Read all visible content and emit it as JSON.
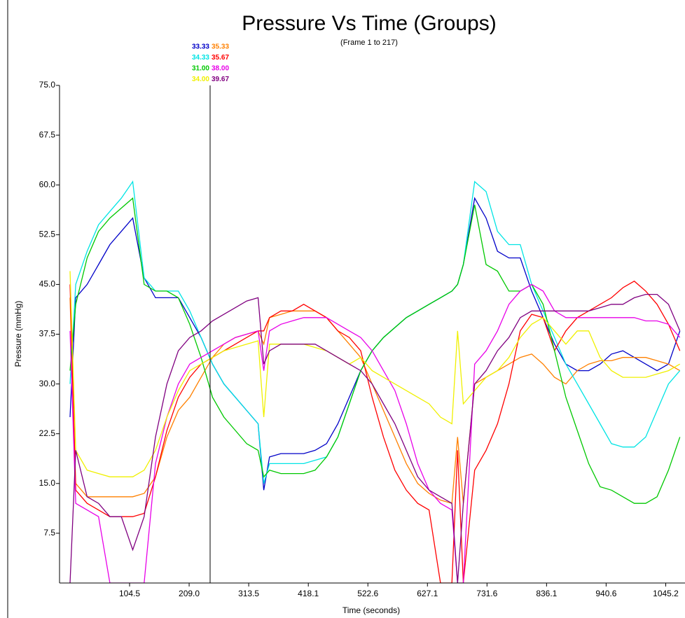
{
  "chart_data": {
    "type": "line",
    "title": "Pressure Vs Time (Groups)",
    "subtitle": "(Frame 1 to 217)",
    "x_label": "Time (seconds)",
    "y_label": "Pressure (mmHg)",
    "xlim": [
      -18.4,
      1079
    ],
    "ylim": [
      0,
      75
    ],
    "xticks": [
      104.5,
      {
        "value": 209,
        "label": "209.0"
      },
      313.5,
      418.1,
      522.6,
      627.1,
      731.6,
      836.1,
      940.6,
      1045.2
    ],
    "yticks": [
      {
        "value": 7.5,
        "label": "7.5"
      },
      {
        "value": 15,
        "label": "15.0"
      },
      {
        "value": 22.5,
        "label": "22.5"
      },
      {
        "value": 30,
        "label": "30.0"
      },
      {
        "value": 37.5,
        "label": "37.5"
      },
      {
        "value": 45,
        "label": "45.0"
      },
      {
        "value": 52.5,
        "label": "52.5"
      },
      {
        "value": 60,
        "label": "60.0"
      },
      {
        "value": 67.5,
        "label": "67.5"
      },
      {
        "value": 75,
        "label": "75.0"
      }
    ],
    "cursor_x": 245.8,
    "x": [
      0,
      10,
      30,
      50,
      70,
      90,
      110,
      130,
      150,
      170,
      190,
      210,
      230,
      250,
      270,
      290,
      310,
      330,
      340,
      350,
      370,
      390,
      410,
      430,
      450,
      470,
      490,
      510,
      530,
      550,
      570,
      590,
      610,
      630,
      650,
      670,
      680,
      690,
      710,
      730,
      750,
      770,
      790,
      810,
      830,
      850,
      870,
      890,
      910,
      930,
      950,
      970,
      990,
      1010,
      1030,
      1050,
      1070
    ],
    "series": [
      {
        "color": "#0000c8",
        "cursor_label": "33.33",
        "values": [
          25,
          43,
          45,
          48,
          51,
          53,
          55,
          46,
          43,
          43,
          43,
          40,
          37,
          33,
          30,
          28,
          26,
          24,
          14,
          19,
          19.5,
          19.5,
          19.5,
          20,
          21,
          24,
          28,
          32,
          35,
          37,
          38.5,
          40,
          41,
          42,
          43,
          44,
          45,
          48,
          58,
          55,
          50,
          49,
          49,
          44,
          40,
          36,
          33,
          32,
          32,
          33,
          34.5,
          35,
          34,
          33,
          32,
          33,
          38
        ]
      },
      {
        "color": "#ff8000",
        "cursor_label": "35.33",
        "values": [
          43,
          15,
          13,
          13,
          13,
          13,
          13,
          13.5,
          16,
          22,
          26,
          28,
          31,
          34,
          36,
          37,
          37.5,
          38,
          36,
          40,
          40.5,
          41,
          41,
          41,
          40,
          38,
          36,
          34,
          30,
          26,
          22,
          18,
          15,
          13.5,
          12.5,
          12,
          22,
          12,
          30,
          31,
          32,
          33,
          34,
          34.5,
          33,
          31,
          30,
          32,
          33,
          33.5,
          33.5,
          34,
          34,
          34,
          33.5,
          33,
          32
        ]
      },
      {
        "color": "#00e4e4",
        "cursor_label": "34.33",
        "values": [
          30,
          45,
          50,
          54,
          56,
          58,
          60.5,
          46,
          44,
          44,
          44,
          41,
          37,
          33,
          30,
          28,
          26,
          24,
          15,
          18,
          18,
          18,
          18,
          18.5,
          19,
          22,
          27,
          32,
          35,
          37,
          38.5,
          40,
          41,
          42,
          43,
          44,
          45,
          48,
          60.5,
          59,
          53,
          51,
          51,
          45,
          41,
          37,
          33,
          30,
          27,
          24,
          21,
          20.5,
          20.5,
          22,
          26,
          30,
          32
        ]
      },
      {
        "color": "#ff0000",
        "cursor_label": "35.67",
        "values": [
          45,
          14,
          12,
          11,
          10,
          10,
          10,
          10.5,
          16,
          23,
          28,
          31,
          33,
          34,
          35,
          36,
          37,
          38,
          38,
          40,
          41,
          41,
          42,
          41,
          40,
          38,
          37,
          35,
          28,
          22,
          17,
          14,
          12,
          11,
          0,
          0,
          20,
          0,
          17,
          20,
          24,
          30,
          38,
          40.5,
          40,
          35,
          38,
          40,
          41,
          42,
          43,
          44.5,
          45.5,
          44,
          42,
          39,
          35
        ]
      },
      {
        "color": "#00c800",
        "cursor_label": "31.00",
        "values": [
          32,
          42,
          49,
          53,
          55,
          56.5,
          58,
          45,
          44,
          44,
          43,
          39,
          34,
          28,
          25,
          23,
          21,
          20,
          16,
          17,
          16.5,
          16.5,
          16.5,
          17,
          19,
          22,
          27,
          32,
          35,
          37,
          38.5,
          40,
          41,
          42,
          43,
          44,
          45,
          48,
          57,
          48,
          47,
          44,
          44,
          45,
          42,
          35,
          28,
          23,
          18,
          14.5,
          14,
          13,
          12,
          12,
          13,
          17,
          22
        ]
      },
      {
        "color": "#e800e8",
        "cursor_label": "38.00",
        "values": [
          38,
          12,
          11,
          10,
          0,
          0,
          0,
          0,
          18,
          25,
          30,
          33,
          34,
          35,
          36,
          37,
          37.5,
          38,
          32,
          38,
          39,
          39.5,
          40,
          40,
          40,
          39,
          38,
          37,
          35,
          32,
          29,
          24,
          18,
          14,
          12,
          11,
          0,
          0,
          33,
          35,
          38,
          42,
          44,
          45,
          44,
          41,
          40,
          40,
          40,
          40,
          40,
          40,
          40,
          39.5,
          39.5,
          39,
          37
        ]
      },
      {
        "color": "#f0f000",
        "cursor_label": "34.00",
        "values": [
          47,
          20,
          17,
          16.5,
          16,
          16,
          16,
          17,
          20,
          25,
          29,
          32,
          33,
          34,
          35,
          35.5,
          36,
          36.5,
          25,
          36,
          36,
          36,
          36,
          35.5,
          35,
          34,
          33,
          34,
          32,
          31,
          30,
          29,
          28,
          27,
          25,
          24,
          38,
          27,
          29,
          31,
          32,
          34,
          37,
          39,
          40,
          38,
          36,
          38,
          38,
          34,
          32,
          31,
          31,
          31,
          31.5,
          32,
          33
        ]
      },
      {
        "color": "#800080",
        "cursor_label": "39.67",
        "values": [
          0,
          20,
          13,
          12,
          10,
          10,
          5,
          10,
          22,
          30,
          35,
          37,
          38,
          39.5,
          40.5,
          41.5,
          42.5,
          43,
          33,
          35,
          36,
          36,
          36,
          36,
          35,
          34,
          33,
          32,
          30,
          27,
          24,
          20,
          16,
          14,
          13,
          12,
          0,
          12,
          30,
          32,
          35,
          37,
          40,
          41,
          41,
          41,
          41,
          41,
          41,
          41.5,
          42,
          42,
          43,
          43.5,
          43.5,
          42,
          38
        ]
      }
    ]
  }
}
